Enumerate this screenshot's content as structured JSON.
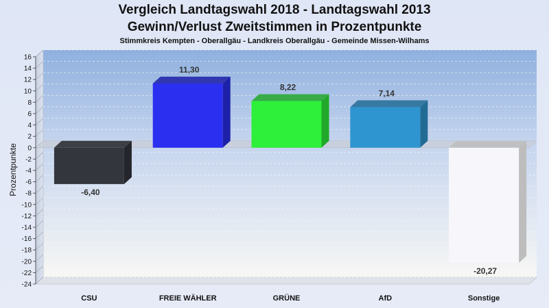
{
  "chart_data": {
    "type": "bar",
    "title": "Vergleich Landtagswahl 2018 - Landtagswahl 2013",
    "title_line2": "Gewinn/Verlust Zweitstimmen in Prozentpunkte",
    "subtitle": "Stimmkreis Kempten - Oberallgäu - Landkreis Oberallgäu - Gemeinde Missen-Wilhams",
    "ylabel": "Prozentpunkte",
    "xlabel": "",
    "categories": [
      "CSU",
      "FREIE WÄHLER",
      "GRÜNE",
      "AfD",
      "Sonstige"
    ],
    "values": [
      -6.4,
      11.3,
      8.22,
      7.14,
      -20.27
    ],
    "value_labels": [
      "-6,40",
      "11,30",
      "8,22",
      "7,14",
      "-20,27"
    ],
    "colors": [
      "#33363d",
      "#2b2ff0",
      "#2ef03a",
      "#2f95d0",
      "#f7f7fb"
    ],
    "side_colors": [
      "#24262b",
      "#1d20a8",
      "#22a82a",
      "#216b95",
      "#bdbdbd"
    ],
    "ylim": [
      -24,
      16
    ],
    "yticks": [
      16,
      14,
      12,
      10,
      8,
      6,
      4,
      2,
      0,
      -2,
      -4,
      -6,
      -8,
      -10,
      -12,
      -14,
      -16,
      -18,
      -20,
      -22,
      -24
    ],
    "grid": true,
    "legend": "none"
  }
}
